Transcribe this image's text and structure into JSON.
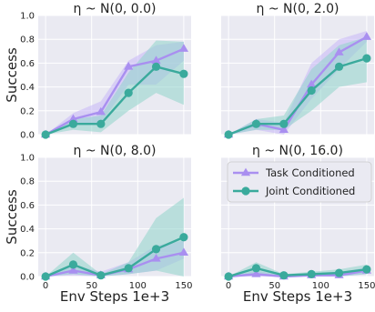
{
  "chart_data": {
    "type": "line",
    "ylabel": "Success",
    "xlabel": "Env Steps 1e+3",
    "xlim": [
      -8,
      158
    ],
    "ylim": [
      0,
      1.0
    ],
    "xticks": [
      "0",
      "50",
      "100",
      "150"
    ],
    "xtick_values": [
      0,
      50,
      100,
      150
    ],
    "yticks": [
      "0.0",
      "0.2",
      "0.4",
      "0.6",
      "0.8",
      "1.0"
    ],
    "ytick_values": [
      0,
      0.2,
      0.4,
      0.6,
      0.8,
      1.0
    ],
    "grid": true,
    "legend": {
      "placement": "upper-right of bottom-right panel",
      "entries": [
        "Task Conditioned",
        "Joint Conditioned"
      ]
    },
    "series_styles": [
      {
        "name": "Task Conditioned",
        "color": "#a98ff0",
        "band_color": "#c7b6f7",
        "marker": "triangle"
      },
      {
        "name": "Joint Conditioned",
        "color": "#3aaa9c",
        "band_color": "#8fd4ca",
        "marker": "circle"
      }
    ],
    "panels": [
      {
        "title": "η ~ N(0, 0.0)",
        "x": [
          0,
          30,
          60,
          90,
          120,
          150
        ],
        "series": [
          {
            "name": "Task Conditioned",
            "values": [
              0.0,
              0.13,
              0.19,
              0.57,
              0.62,
              0.72
            ],
            "lower": [
              0.0,
              0.08,
              0.1,
              0.42,
              0.42,
              0.62
            ],
            "upper": [
              0.0,
              0.18,
              0.28,
              0.62,
              0.75,
              0.78
            ]
          },
          {
            "name": "Joint Conditioned",
            "values": [
              0.0,
              0.09,
              0.09,
              0.35,
              0.57,
              0.51
            ],
            "lower": [
              0.0,
              0.04,
              0.02,
              0.2,
              0.35,
              0.25
            ],
            "upper": [
              0.0,
              0.13,
              0.16,
              0.52,
              0.79,
              0.78
            ]
          }
        ]
      },
      {
        "title": "η ~ N(0, 2.0)",
        "x": [
          0,
          30,
          60,
          90,
          120,
          150
        ],
        "series": [
          {
            "name": "Task Conditioned",
            "values": [
              0.0,
              0.09,
              0.04,
              0.42,
              0.69,
              0.82
            ],
            "lower": [
              0.0,
              0.04,
              0.0,
              0.3,
              0.55,
              0.78
            ],
            "upper": [
              0.0,
              0.13,
              0.1,
              0.6,
              0.8,
              0.87
            ]
          },
          {
            "name": "Joint Conditioned",
            "values": [
              0.0,
              0.09,
              0.09,
              0.37,
              0.57,
              0.64
            ],
            "lower": [
              0.0,
              0.04,
              0.04,
              0.2,
              0.4,
              0.44
            ],
            "upper": [
              0.0,
              0.13,
              0.16,
              0.55,
              0.75,
              0.82
            ]
          }
        ]
      },
      {
        "title": "η ~ N(0, 8.0)",
        "x": [
          0,
          30,
          60,
          90,
          120,
          150
        ],
        "series": [
          {
            "name": "Task Conditioned",
            "values": [
              0.0,
              0.05,
              0.01,
              0.06,
              0.15,
              0.2
            ],
            "lower": [
              0.0,
              0.01,
              0.0,
              0.02,
              0.05,
              0.15
            ],
            "upper": [
              0.0,
              0.1,
              0.04,
              0.12,
              0.26,
              0.3
            ]
          },
          {
            "name": "Joint Conditioned",
            "values": [
              0.0,
              0.1,
              0.01,
              0.07,
              0.23,
              0.33
            ],
            "lower": [
              0.0,
              0.02,
              0.0,
              0.02,
              0.05,
              0.0
            ],
            "upper": [
              0.0,
              0.2,
              0.02,
              0.12,
              0.49,
              0.66
            ]
          }
        ]
      },
      {
        "title": "η ~ N(0, 16.0)",
        "x": [
          0,
          30,
          60,
          90,
          120,
          150
        ],
        "series": [
          {
            "name": "Task Conditioned",
            "values": [
              0.0,
              0.02,
              0.0,
              0.01,
              0.01,
              0.05
            ],
            "lower": [
              0.0,
              0.0,
              0.0,
              0.0,
              0.0,
              0.02
            ],
            "upper": [
              0.0,
              0.05,
              0.01,
              0.02,
              0.03,
              0.08
            ]
          },
          {
            "name": "Joint Conditioned",
            "values": [
              0.0,
              0.07,
              0.01,
              0.02,
              0.03,
              0.06
            ],
            "lower": [
              0.0,
              0.02,
              0.0,
              0.0,
              0.0,
              0.02
            ],
            "upper": [
              0.0,
              0.12,
              0.02,
              0.04,
              0.06,
              0.1
            ]
          }
        ]
      }
    ]
  }
}
